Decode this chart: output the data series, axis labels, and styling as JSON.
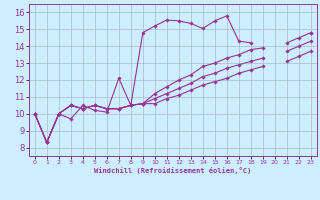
{
  "xlabel": "Windchill (Refroidissement éolien,°C)",
  "bg_color": "#cceeff",
  "line_color": "#993399",
  "grid_color": "#aabbcc",
  "xlim": [
    -0.5,
    23.5
  ],
  "ylim": [
    7.5,
    16.5
  ],
  "xticks": [
    0,
    1,
    2,
    3,
    4,
    5,
    6,
    7,
    8,
    9,
    10,
    11,
    12,
    13,
    14,
    15,
    16,
    17,
    18,
    19,
    20,
    21,
    22,
    23
  ],
  "yticks": [
    8,
    9,
    10,
    11,
    12,
    13,
    14,
    15,
    16
  ],
  "series": [
    {
      "x": [
        0,
        1,
        2,
        3,
        4,
        5,
        6,
        7,
        8,
        9,
        10,
        11,
        12,
        13,
        14,
        15,
        16,
        17,
        18,
        19,
        20,
        21,
        22,
        23
      ],
      "y": [
        10.0,
        8.3,
        10.0,
        9.7,
        10.5,
        10.2,
        10.1,
        12.1,
        10.5,
        14.8,
        15.2,
        15.55,
        15.5,
        15.35,
        15.05,
        15.5,
        15.8,
        14.3,
        14.2,
        null,
        null,
        null,
        null,
        14.8
      ]
    },
    {
      "x": [
        0,
        1,
        2,
        3,
        4,
        5,
        6,
        7,
        8,
        9,
        10,
        11,
        12,
        13,
        14,
        15,
        16,
        17,
        18,
        19,
        20,
        21,
        22,
        23
      ],
      "y": [
        10.0,
        8.3,
        10.0,
        10.5,
        10.3,
        10.5,
        10.3,
        10.3,
        10.5,
        10.6,
        11.2,
        11.6,
        12.0,
        12.3,
        12.8,
        13.0,
        13.3,
        13.5,
        13.8,
        13.9,
        null,
        14.2,
        14.5,
        14.8
      ]
    },
    {
      "x": [
        0,
        1,
        2,
        3,
        4,
        5,
        6,
        7,
        8,
        9,
        10,
        11,
        12,
        13,
        14,
        15,
        16,
        17,
        18,
        19,
        20,
        21,
        22,
        23
      ],
      "y": [
        10.0,
        8.3,
        10.0,
        10.5,
        10.3,
        10.5,
        10.3,
        10.3,
        10.5,
        10.6,
        10.9,
        11.2,
        11.5,
        11.8,
        12.2,
        12.4,
        12.7,
        12.9,
        13.1,
        13.3,
        null,
        13.7,
        14.0,
        14.3
      ]
    },
    {
      "x": [
        0,
        1,
        2,
        3,
        4,
        5,
        6,
        7,
        8,
        9,
        10,
        11,
        12,
        13,
        14,
        15,
        16,
        17,
        18,
        19,
        20,
        21,
        22,
        23
      ],
      "y": [
        10.0,
        8.3,
        10.0,
        10.5,
        10.3,
        10.5,
        10.3,
        10.3,
        10.5,
        10.6,
        10.6,
        10.9,
        11.1,
        11.4,
        11.7,
        11.9,
        12.1,
        12.4,
        12.6,
        12.8,
        null,
        13.1,
        13.4,
        13.7
      ]
    }
  ]
}
